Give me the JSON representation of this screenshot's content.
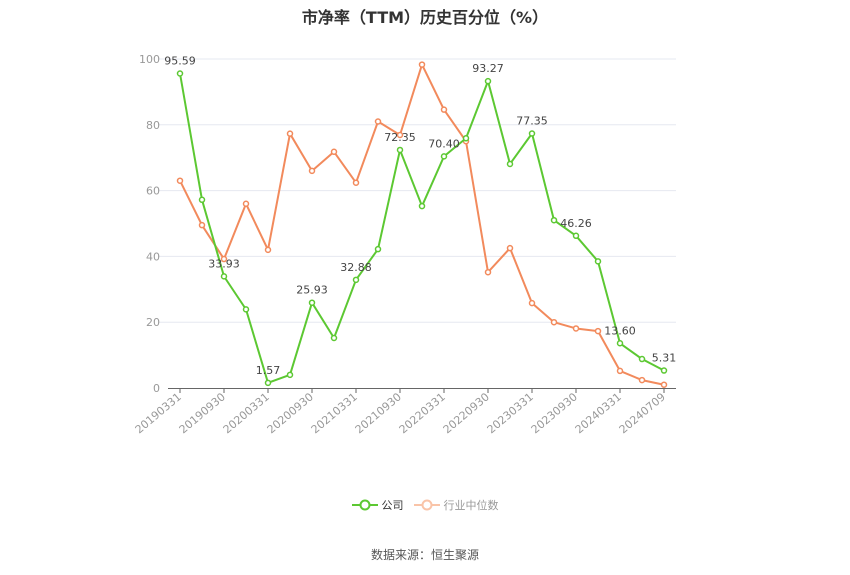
{
  "title": "市净率（TTM）历史百分位（%）",
  "source_text": "数据来源：恒生聚源",
  "legend": [
    {
      "label": "公司",
      "color": "#5cc832"
    },
    {
      "label": "行业中位数",
      "color": "#f5a27a"
    }
  ],
  "colors": {
    "company": "#5cc832",
    "industry": "#f28a5c",
    "grid": "#e6e8f0",
    "axis": "#666666",
    "tick_label": "#999999"
  },
  "chart_data": {
    "type": "line",
    "title": "市净率（TTM）历史百分位（%）",
    "xlabel": "",
    "ylabel": "",
    "ylim": [
      0,
      100
    ],
    "yticks": [
      0,
      20,
      40,
      60,
      80,
      100
    ],
    "grid": true,
    "legend_position": "bottom",
    "x_tick_labels": [
      "20190331",
      "20190930",
      "20200331",
      "20200930",
      "20210331",
      "20210930",
      "20220331",
      "20220930",
      "20230331",
      "20230930",
      "20240331",
      "20240709"
    ],
    "x_point_count": 23,
    "series": [
      {
        "name": "公司",
        "values": [
          95.59,
          57.2,
          33.93,
          23.9,
          1.57,
          4.0,
          25.93,
          15.2,
          32.88,
          42.2,
          72.35,
          55.3,
          70.4,
          75.9,
          93.27,
          68.1,
          77.35,
          51.0,
          46.26,
          38.5,
          13.6,
          8.8,
          5.31
        ],
        "labeled_points": [
          {
            "index": 0,
            "label": "95.59"
          },
          {
            "index": 2,
            "label": "33.93"
          },
          {
            "index": 4,
            "label": "1.57"
          },
          {
            "index": 6,
            "label": "25.93"
          },
          {
            "index": 8,
            "label": "32.88"
          },
          {
            "index": 10,
            "label": "72.35"
          },
          {
            "index": 12,
            "label": "70.40"
          },
          {
            "index": 14,
            "label": "93.27"
          },
          {
            "index": 16,
            "label": "77.35"
          },
          {
            "index": 18,
            "label": "46.26"
          },
          {
            "index": 20,
            "label": "13.60"
          },
          {
            "index": 22,
            "label": "5.31"
          }
        ]
      },
      {
        "name": "行业中位数",
        "values": [
          63.0,
          49.5,
          39.2,
          56.0,
          42.0,
          77.3,
          66.0,
          71.8,
          62.4,
          81.0,
          76.9,
          98.3,
          84.6,
          75.0,
          35.2,
          42.5,
          25.8,
          20.0,
          18.1,
          17.3,
          5.2,
          2.4,
          1.0
        ]
      }
    ]
  }
}
